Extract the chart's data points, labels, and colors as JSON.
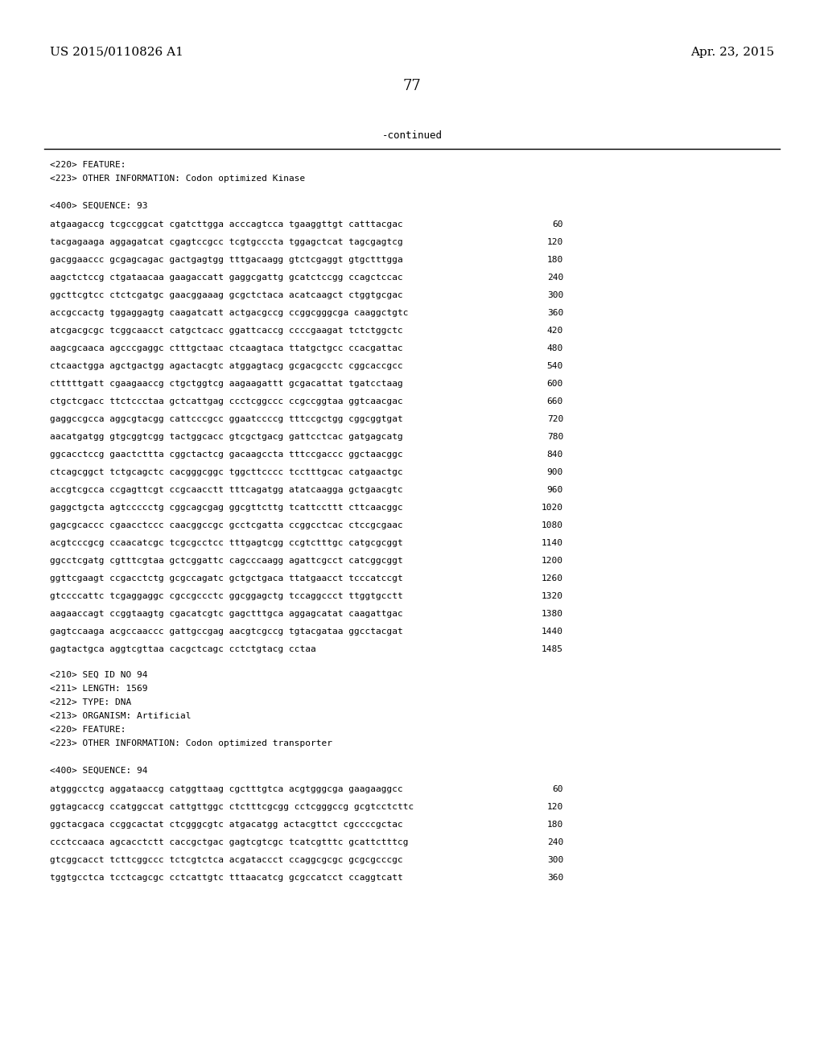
{
  "header_left": "US 2015/0110826 A1",
  "header_right": "Apr. 23, 2015",
  "page_number": "77",
  "continued_label": "-continued",
  "background_color": "#ffffff",
  "text_color": "#000000",
  "font_size_header": 11,
  "font_size_body": 8.0,
  "font_size_page": 13,
  "metadata_lines": [
    "<220> FEATURE:",
    "<223> OTHER INFORMATION: Codon optimized Kinase",
    "",
    "<400> SEQUENCE: 93"
  ],
  "sequence_lines_93": [
    [
      "atgaagaccg tcgccggcat cgatcttgga acccagtcca tgaaggttgt catttacgac",
      "60"
    ],
    [
      "tacgagaaga aggagatcat cgagtccgcc tcgtgcccta tggagctcat tagcgagtcg",
      "120"
    ],
    [
      "gacggaaccc gcgagcagac gactgagtgg tttgacaagg gtctcgaggt gtgctttgga",
      "180"
    ],
    [
      "aagctctccg ctgataacaa gaagaccatt gaggcgattg gcatctccgg ccagctccac",
      "240"
    ],
    [
      "ggcttcgtcc ctctcgatgc gaacggaaag gcgctctaca acatcaagct ctggtgcgac",
      "300"
    ],
    [
      "accgccactg tggaggagtg caagatcatt actgacgccg ccggcgggcga caaggctgtc",
      "360"
    ],
    [
      "atcgacgcgc tcggcaacct catgctcacc ggattcaccg ccccgaagat tctctggctc",
      "420"
    ],
    [
      "aagcgcaaca agcccgaggc ctttgctaac ctcaagtaca ttatgctgcc ccacgattac",
      "480"
    ],
    [
      "ctcaactgga agctgactgg agactacgtc atggagtacg gcgacgcctc cggcaccgcc",
      "540"
    ],
    [
      "ctttttgatt cgaagaaccg ctgctggtcg aagaagattt gcgacattat tgatcctaag",
      "600"
    ],
    [
      "ctgctcgacc ttctccctaa gctcattgag ccctcggccc ccgccggtaa ggtcaacgac",
      "660"
    ],
    [
      "gaggccgcca aggcgtacgg cattcccgcc ggaatccccg tttccgctgg cggcggtgat",
      "720"
    ],
    [
      "aacatgatgg gtgcggtcgg tactggcacc gtcgctgacg gattcctcac gatgagcatg",
      "780"
    ],
    [
      "ggcacctccg gaactcttta cggctactcg gacaagccta tttccgaccc ggctaacggc",
      "840"
    ],
    [
      "ctcagcggct tctgcagctc cacgggcggc tggcttcccc tcctttgcac catgaactgc",
      "900"
    ],
    [
      "accgtcgcca ccgagttcgt ccgcaacctt tttcagatgg atatcaagga gctgaacgtc",
      "960"
    ],
    [
      "gaggctgcta agtccccctg cggcagcgag ggcgttcttg tcattccttt cttcaacggc",
      "1020"
    ],
    [
      "gagcgcaccc cgaacctccc caacggccgc gcctcgatta ccggcctcac ctccgcgaac",
      "1080"
    ],
    [
      "acgtcccgcg ccaacatcgc tcgcgcctcc tttgagtcgg ccgtctttgc catgcgcggt",
      "1140"
    ],
    [
      "ggcctcgatg cgtttcgtaa gctcggattc cagcccaagg agattcgcct catcggcggt",
      "1200"
    ],
    [
      "ggttcgaagt ccgacctctg gcgccagatc gctgctgaca ttatgaacct tcccatccgt",
      "1260"
    ],
    [
      "gtccccattc tcgaggaggc cgccgccctc ggcggagctg tccaggccct ttggtgcctt",
      "1320"
    ],
    [
      "aagaaccagt ccggtaagtg cgacatcgtc gagctttgca aggagcatat caagattgac",
      "1380"
    ],
    [
      "gagtccaaga acgccaaccc gattgccgag aacgtcgccg tgtacgataa ggcctacgat",
      "1440"
    ],
    [
      "gagtactgca aggtcgttaa cacgctcagc cctctgtacg cctaa",
      "1485"
    ]
  ],
  "metadata_lines_94": [
    "<210> SEQ ID NO 94",
    "<211> LENGTH: 1569",
    "<212> TYPE: DNA",
    "<213> ORGANISM: Artificial",
    "<220> FEATURE:",
    "<223> OTHER INFORMATION: Codon optimized transporter",
    "",
    "<400> SEQUENCE: 94"
  ],
  "sequence_lines_94": [
    [
      "atgggcctcg aggataaccg catggttaag cgctttgtca acgtgggcga gaagaaggcc",
      "60"
    ],
    [
      "ggtagcaccg ccatggccat cattgttggc ctctttcgcgg cctcgggccg gcgtcctcttc",
      "120"
    ],
    [
      "ggctacgaca ccggcactat ctcgggcgtc atgacatgg actacgttct cgccccgctac",
      "180"
    ],
    [
      "ccctccaaca agcacctctt caccgctgac gagtcgtcgc tcatcgtttc gcattctttcg",
      "240"
    ],
    [
      "gtcggcacct tcttcggccc tctcgtctca acgataccct ccaggcgcgc gcgcgcccgc",
      "300"
    ],
    [
      "tggtgcctca tcctcagcgc cctcattgtc tttaacatcg gcgccatcct ccaggtcatt",
      "360"
    ]
  ]
}
